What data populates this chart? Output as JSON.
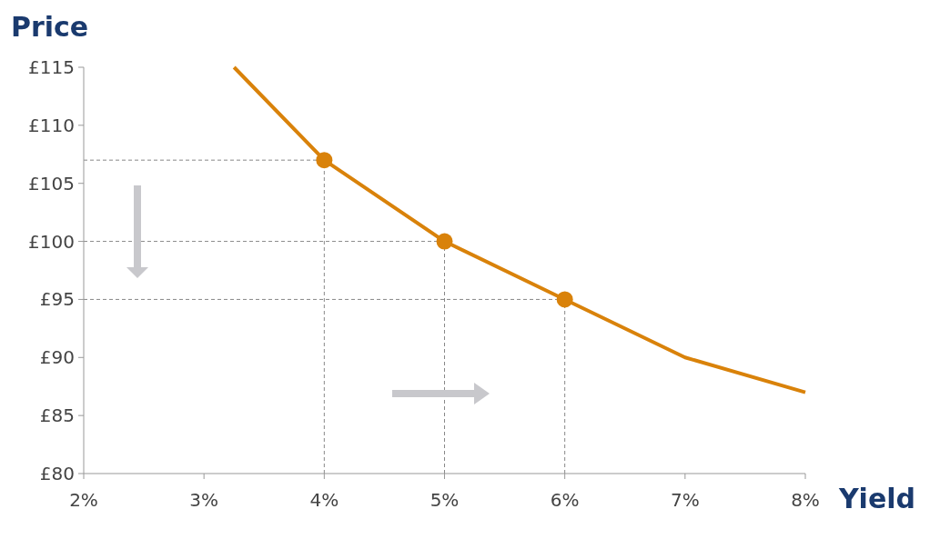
{
  "chart_data": {
    "type": "line",
    "xlabel": "Yield",
    "ylabel": "Price",
    "xlim": [
      2,
      8
    ],
    "ylim": [
      80,
      115
    ],
    "xticks": [
      {
        "value": 2,
        "label": "2%"
      },
      {
        "value": 3,
        "label": "3%"
      },
      {
        "value": 4,
        "label": "4%"
      },
      {
        "value": 5,
        "label": "5%"
      },
      {
        "value": 6,
        "label": "6%"
      },
      {
        "value": 7,
        "label": "7%"
      },
      {
        "value": 8,
        "label": "8%"
      }
    ],
    "yticks": [
      {
        "value": 80,
        "label": "£80"
      },
      {
        "value": 85,
        "label": "£85"
      },
      {
        "value": 90,
        "label": "£90"
      },
      {
        "value": 95,
        "label": "£95"
      },
      {
        "value": 100,
        "label": "£100"
      },
      {
        "value": 105,
        "label": "£105"
      },
      {
        "value": 110,
        "label": "£110"
      },
      {
        "value": 115,
        "label": "£115"
      }
    ],
    "series": [
      {
        "color": "#d9820a",
        "marker": "none",
        "x": [
          3.25,
          4,
          5,
          6,
          7,
          8
        ],
        "values": [
          115,
          107,
          100,
          95,
          90,
          87
        ]
      },
      {
        "type": "scatter",
        "color": "#d9820a",
        "marker": "circle",
        "x": [
          4,
          5,
          6
        ],
        "values": [
          107,
          100,
          95
        ]
      }
    ],
    "ref_lines": [
      {
        "axis": "y",
        "value": 107,
        "color": "#888888",
        "line_style": "dashed"
      },
      {
        "axis": "y",
        "value": 100,
        "color": "#888888",
        "line_style": "dashed"
      },
      {
        "axis": "y",
        "value": 95,
        "color": "#888888",
        "line_style": "dashed"
      },
      {
        "axis": "x",
        "value": 4,
        "color": "#888888",
        "line_style": "dashed"
      },
      {
        "axis": "x",
        "value": 5,
        "color": "#888888",
        "line_style": "dashed"
      },
      {
        "axis": "x",
        "value": 6,
        "color": "#888888",
        "line_style": "dashed"
      }
    ],
    "grid": false
  }
}
